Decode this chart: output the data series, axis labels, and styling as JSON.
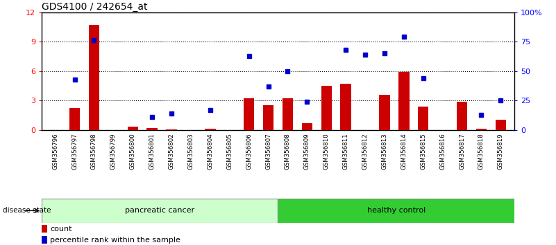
{
  "title": "GDS4100 / 242654_at",
  "samples": [
    "GSM356796",
    "GSM356797",
    "GSM356798",
    "GSM356799",
    "GSM356800",
    "GSM356801",
    "GSM356802",
    "GSM356803",
    "GSM356804",
    "GSM356805",
    "GSM356806",
    "GSM356807",
    "GSM356808",
    "GSM356809",
    "GSM356810",
    "GSM356811",
    "GSM356812",
    "GSM356813",
    "GSM356814",
    "GSM356815",
    "GSM356816",
    "GSM356817",
    "GSM356818",
    "GSM356819"
  ],
  "count_values": [
    0.0,
    2.2,
    10.7,
    0.0,
    0.3,
    0.15,
    0.05,
    0.0,
    0.1,
    0.0,
    3.2,
    2.5,
    3.2,
    0.7,
    4.5,
    4.7,
    0.0,
    3.6,
    5.9,
    2.4,
    0.0,
    2.9,
    0.1,
    1.0
  ],
  "percentile_values": [
    null,
    43,
    76,
    null,
    null,
    11,
    14,
    null,
    17,
    null,
    63,
    37,
    50,
    24,
    null,
    68,
    64,
    65,
    79,
    44,
    null,
    null,
    13,
    25
  ],
  "pc_count": 12,
  "hc_count": 12,
  "bar_color": "#cc0000",
  "dot_color": "#0000cc",
  "bg_color": "#ffffff",
  "tick_area_color": "#cccccc",
  "pancreatic_color": "#ccffcc",
  "healthy_color": "#33cc33",
  "ylim_left": [
    0,
    12
  ],
  "ylim_right": [
    0,
    100
  ],
  "yticks_left": [
    0,
    3,
    6,
    9,
    12
  ],
  "yticks_right": [
    0,
    25,
    50,
    75,
    100
  ],
  "ytick_right_labels": [
    "0",
    "25",
    "50",
    "75",
    "100%"
  ]
}
